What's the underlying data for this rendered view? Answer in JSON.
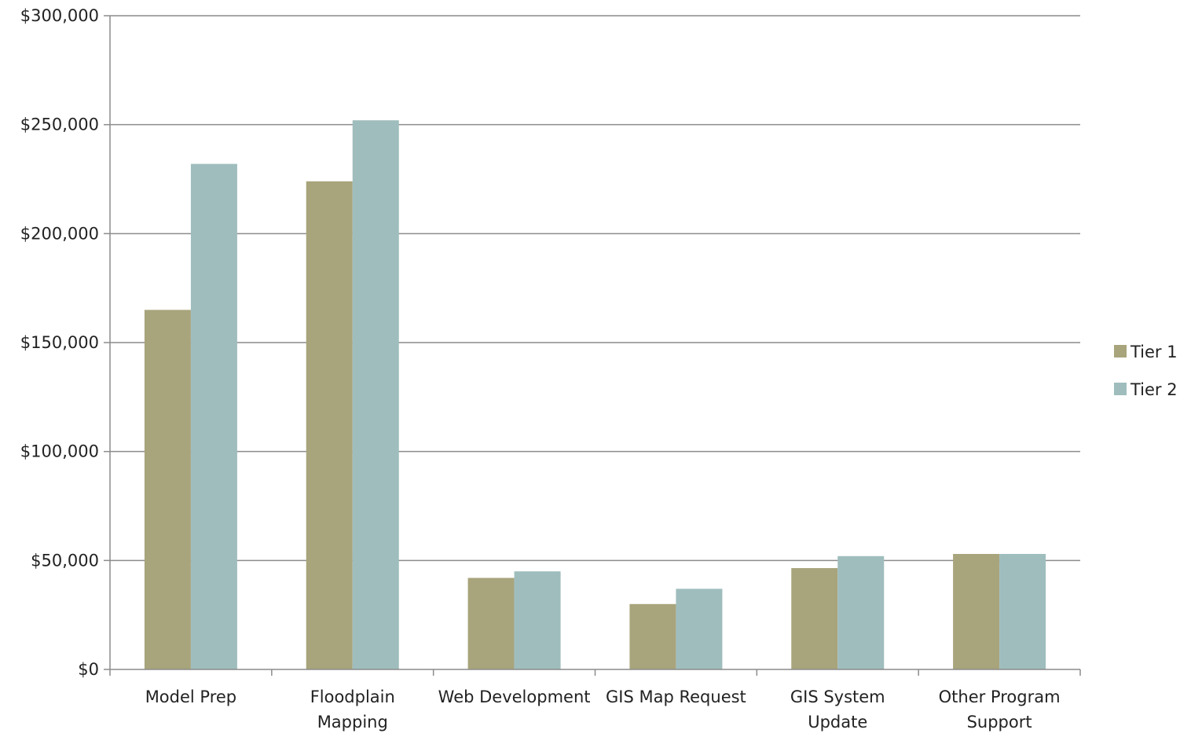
{
  "chart_data": {
    "type": "bar",
    "title": "",
    "xlabel": "",
    "ylabel": "",
    "ylim": [
      0,
      300000
    ],
    "yticks": [
      0,
      50000,
      100000,
      150000,
      200000,
      250000,
      300000
    ],
    "ytick_labels": [
      "$0",
      "$50,000",
      "$100,000",
      "$150,000",
      "$200,000",
      "$250,000",
      "$300,000"
    ],
    "categories": [
      [
        "Model Prep"
      ],
      [
        "Floodplain",
        "Mapping"
      ],
      [
        "Web Development"
      ],
      [
        "GIS Map Request"
      ],
      [
        "GIS System",
        "Update"
      ],
      [
        "Other Program",
        "Support"
      ]
    ],
    "series": [
      {
        "name": "Tier 1",
        "color": "#a8a47c",
        "values": [
          165000,
          224000,
          42000,
          30000,
          46500,
          53000
        ]
      },
      {
        "name": "Tier 2",
        "color": "#9fbdbd",
        "values": [
          232000,
          252000,
          45000,
          37000,
          52000,
          53000
        ]
      }
    ],
    "grid": true,
    "legend_position": "right"
  }
}
